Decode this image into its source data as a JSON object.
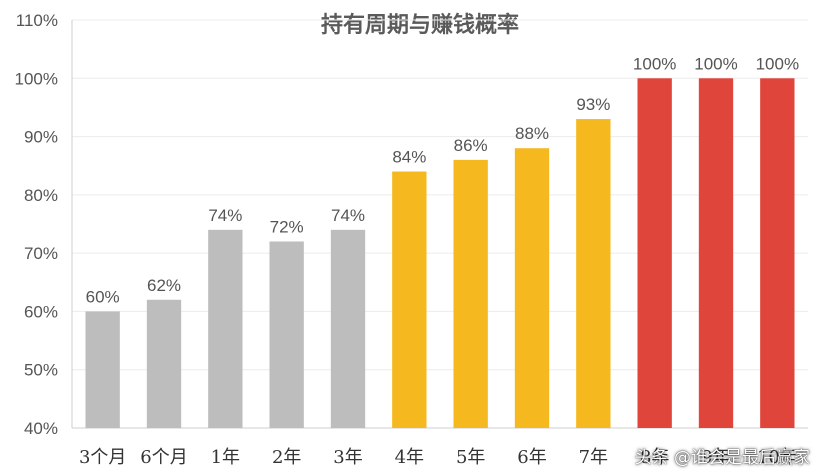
{
  "chart_data": {
    "type": "bar",
    "title": "持有周期与赚钱概率",
    "xlabel": "",
    "ylabel": "",
    "categories": [
      "3个月",
      "6个月",
      "1年",
      "2年",
      "3年",
      "4年",
      "5年",
      "6年",
      "7年",
      "8年",
      "9年",
      "10年"
    ],
    "values": [
      60,
      62,
      74,
      72,
      74,
      84,
      86,
      88,
      93,
      100,
      100,
      100
    ],
    "value_labels": [
      "60%",
      "62%",
      "74%",
      "72%",
      "74%",
      "84%",
      "86%",
      "88%",
      "93%",
      "100%",
      "100%",
      "100%"
    ],
    "bar_colors": [
      "#bdbdbd",
      "#bdbdbd",
      "#bdbdbd",
      "#bdbdbd",
      "#bdbdbd",
      "#f5b81e",
      "#f5b81e",
      "#f5b81e",
      "#f5b81e",
      "#e0453c",
      "#e0453c",
      "#e0453c"
    ],
    "ylim": [
      40,
      110
    ],
    "yticks": [
      40,
      50,
      60,
      70,
      80,
      90,
      100,
      110
    ],
    "ytick_labels": [
      "40%",
      "50%",
      "60%",
      "70%",
      "80%",
      "90%",
      "100%",
      "110%"
    ],
    "grid": true,
    "legend": "none"
  },
  "watermark": "头条 @谁会是最后赢家"
}
